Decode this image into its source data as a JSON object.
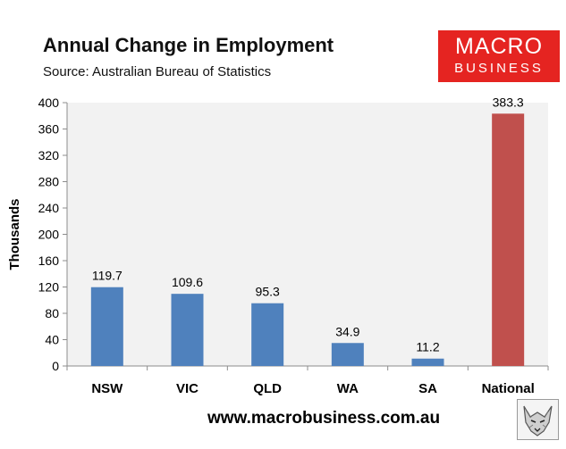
{
  "header": {
    "title": "Annual Change in Employment",
    "subtitle": "Source: Australian Bureau of Statistics"
  },
  "logo": {
    "line1": "MACRO",
    "line2": "BUSINESS",
    "color": "#e52421"
  },
  "footer": {
    "website": "www.macrobusiness.com.au"
  },
  "colors": {
    "plot_background": "#f2f2f2",
    "bar": "#4f81bd",
    "highlight_bar": "#c0504d"
  },
  "chart_data": {
    "type": "bar",
    "title": "Annual Change in Employment",
    "subtitle": "Source: Australian Bureau of Statistics",
    "categories": [
      "NSW",
      "VIC",
      "QLD",
      "WA",
      "SA",
      "National"
    ],
    "values": [
      119.7,
      109.6,
      95.3,
      34.9,
      11.2,
      383.3
    ],
    "value_labels": [
      "119.7",
      "109.6",
      "95.3",
      "34.9",
      "11.2",
      "383.3"
    ],
    "highlight": "National",
    "xlabel": "",
    "ylabel": "Thousands",
    "ylim": [
      0,
      400
    ],
    "yticks": [
      0,
      40,
      80,
      120,
      160,
      200,
      240,
      280,
      320,
      360,
      400
    ],
    "grid": false,
    "legend": "none"
  }
}
